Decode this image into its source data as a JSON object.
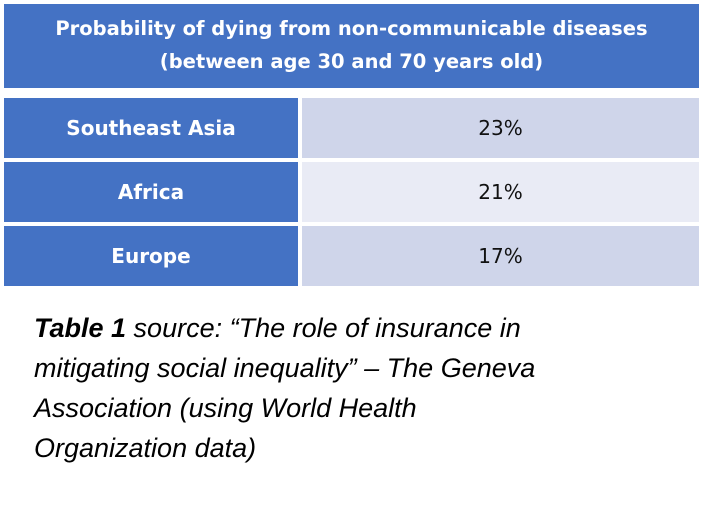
{
  "table": {
    "header_line1": "Probability of dying from non-communicable diseases",
    "header_line2": "(between age 30 and 70 years old)",
    "rows": [
      {
        "region": "Southeast Asia",
        "value": "23%"
      },
      {
        "region": "Africa",
        "value": "21%"
      },
      {
        "region": "Europe",
        "value": "17%"
      }
    ]
  },
  "caption": {
    "label": "Table 1",
    "line1_rest": " source: “The role of insurance in",
    "line2": "mitigating social inequality” – The Geneva",
    "line3": "Association (using World Health",
    "line4": "Organization data)"
  }
}
